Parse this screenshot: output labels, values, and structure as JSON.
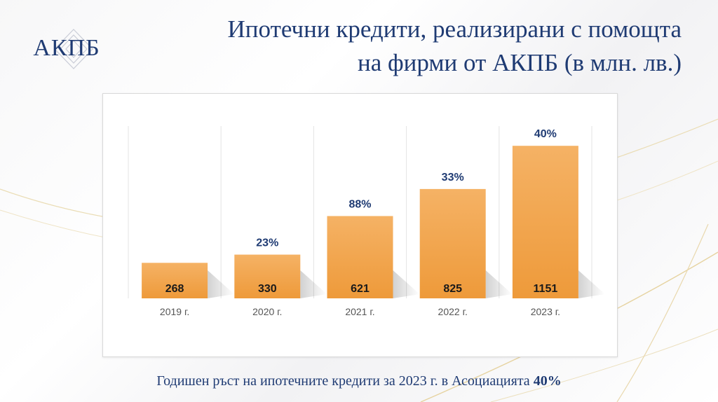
{
  "brand": {
    "logo_text": "АКПБ"
  },
  "header": {
    "title_line1": "Ипотечни кредити, реализирани с помощта",
    "title_line2": "на фирми от АКПБ (в млн. лв.)"
  },
  "chart_data": {
    "type": "bar",
    "title": "",
    "xlabel": "",
    "ylabel": "",
    "categories": [
      "2019 г.",
      "2020 г.",
      "2021 г.",
      "2022 г.",
      "2023 г."
    ],
    "values": [
      268,
      330,
      621,
      825,
      1151
    ],
    "value_labels": [
      "268",
      "330",
      "621",
      "825",
      "1151"
    ],
    "growth_labels": [
      "",
      "23%",
      "88%",
      "33%",
      "40%"
    ],
    "ylim": [
      0,
      1300
    ],
    "grid": "vertical",
    "legend": "none"
  },
  "colors": {
    "bar_top": "#f5b265",
    "bar_bottom": "#ee9a3a",
    "text_dark": "#1f3b73",
    "bar_label": "#1a1a1a"
  },
  "footer": {
    "text": "Годишен ръст на ипотечните кредити за 2023 г. в Асоциацията",
    "highlight": "40%"
  }
}
